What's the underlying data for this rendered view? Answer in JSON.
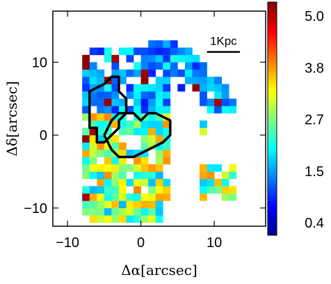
{
  "chart_data": {
    "type": "heatmap",
    "title": "",
    "xlabel": "Δα[arcsec]",
    "ylabel": "Δδ[arcsec]",
    "xlim": [
      -12,
      17
    ],
    "ylim": [
      -12.5,
      17
    ],
    "x_ticks": [
      {
        "value": -10,
        "label": "−10"
      },
      {
        "value": 0,
        "label": "0"
      },
      {
        "value": 10,
        "label": "10"
      }
    ],
    "y_ticks": [
      {
        "value": -10,
        "label": "−10"
      },
      {
        "value": 0,
        "label": "0"
      },
      {
        "value": 10,
        "label": "10"
      }
    ],
    "scale_bar": {
      "label": "1Kpc",
      "x_start": 9,
      "x_end": 13.5,
      "y": 11.4
    },
    "colorbar": {
      "range": [
        0.4,
        5.0
      ],
      "tick_labels": [
        "5.0",
        "3.8",
        "2.7",
        "1.5",
        "0.4"
      ],
      "colormap": "jet"
    },
    "pixel_size_arcsec": 1.0,
    "shape_description": "ring-like distribution",
    "contours": [
      {
        "name": "left-contour",
        "points": [
          [
            -7,
            3
          ],
          [
            -7,
            6
          ],
          [
            -5,
            7
          ],
          [
            -4,
            8
          ],
          [
            -3,
            8
          ],
          [
            -3,
            6
          ],
          [
            -2,
            5
          ],
          [
            -2,
            3
          ],
          [
            -3,
            2
          ],
          [
            -3,
            1
          ],
          [
            -4,
            0
          ],
          [
            -5,
            -1
          ],
          [
            -6,
            -1
          ],
          [
            -6,
            1
          ],
          [
            -7,
            1
          ],
          [
            -7,
            3
          ]
        ]
      },
      {
        "name": "right-contour",
        "points": [
          [
            -5,
            0
          ],
          [
            -4,
            2
          ],
          [
            -3,
            3
          ],
          [
            -1,
            3
          ],
          [
            0,
            2
          ],
          [
            1,
            3
          ],
          [
            2,
            3
          ],
          [
            4,
            2
          ],
          [
            4,
            0
          ],
          [
            3,
            -1
          ],
          [
            1,
            -2
          ],
          [
            -1,
            -3
          ],
          [
            -3,
            -3
          ],
          [
            -4,
            -2
          ],
          [
            -5,
            0
          ]
        ]
      }
    ]
  }
}
